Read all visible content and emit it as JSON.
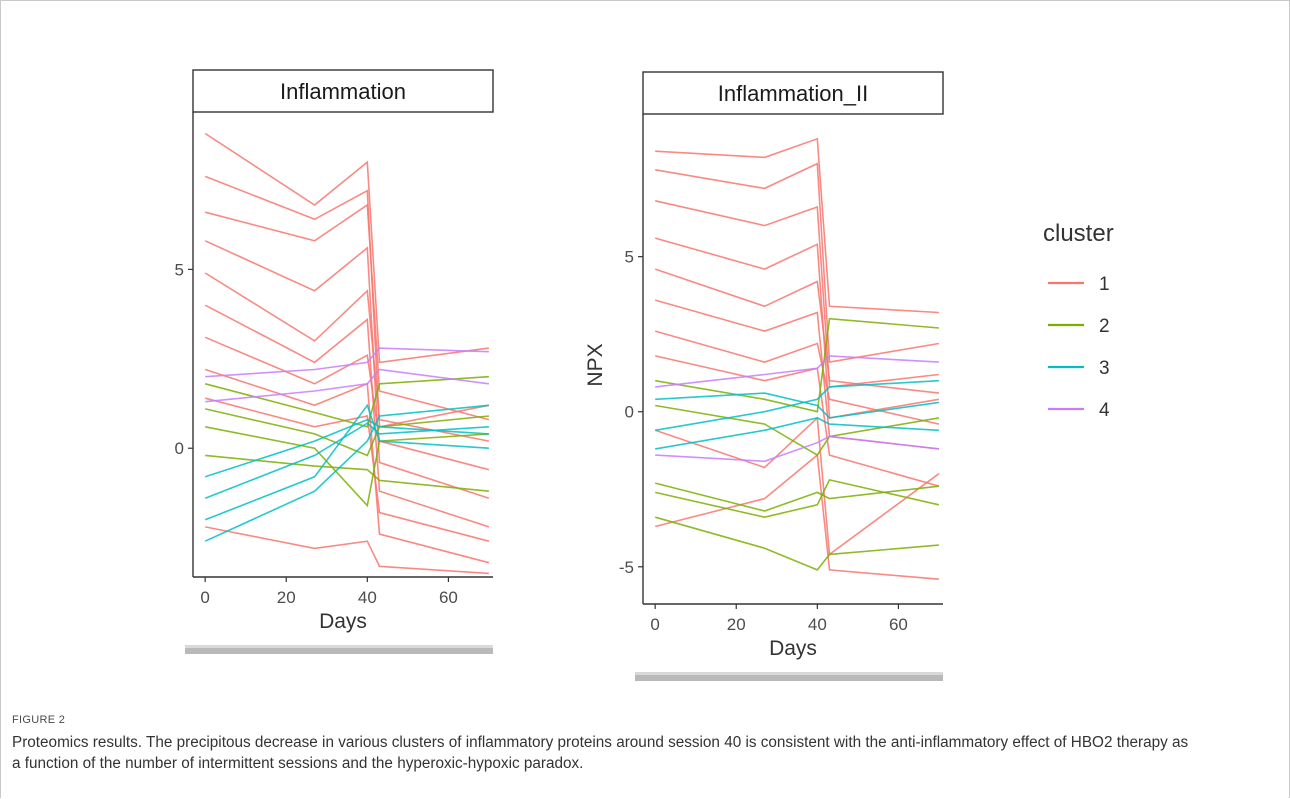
{
  "chart_data": [
    {
      "type": "line",
      "panel": "Inflammation",
      "strip_title": "Inflammation",
      "xlabel": "Days",
      "ylabel": "",
      "x_ticks": [
        0,
        20,
        40,
        60
      ],
      "y_ticks": [
        0,
        5
      ],
      "xlim": [
        -3,
        71
      ],
      "ylim": [
        -3.6,
        9.4
      ],
      "x_days": [
        0,
        27,
        40,
        43,
        70
      ],
      "grid": false,
      "series": [
        {
          "cluster": "1",
          "values": [
            8.8,
            6.8,
            8.0,
            2.4,
            2.8
          ]
        },
        {
          "cluster": "1",
          "values": [
            7.6,
            6.4,
            7.2,
            0.6,
            1.2
          ]
        },
        {
          "cluster": "1",
          "values": [
            6.6,
            5.8,
            6.8,
            1.6,
            0.8
          ]
        },
        {
          "cluster": "1",
          "values": [
            5.8,
            4.4,
            5.6,
            -0.4,
            -1.4
          ]
        },
        {
          "cluster": "1",
          "values": [
            4.9,
            3.0,
            4.4,
            0.8,
            0.2
          ]
        },
        {
          "cluster": "1",
          "values": [
            4.0,
            2.4,
            3.6,
            -1.2,
            -2.2
          ]
        },
        {
          "cluster": "1",
          "values": [
            3.1,
            1.8,
            2.6,
            0.2,
            -0.6
          ]
        },
        {
          "cluster": "1",
          "values": [
            2.2,
            1.2,
            1.8,
            -2.4,
            -3.2
          ]
        },
        {
          "cluster": "1",
          "values": [
            1.4,
            0.6,
            0.9,
            -1.8,
            -2.6
          ]
        },
        {
          "cluster": "1",
          "values": [
            -2.2,
            -2.8,
            -2.6,
            -3.3,
            -3.5
          ]
        },
        {
          "cluster": "2",
          "values": [
            1.8,
            1.0,
            0.6,
            1.8,
            2.0
          ]
        },
        {
          "cluster": "2",
          "values": [
            1.1,
            0.4,
            -0.2,
            0.6,
            0.9
          ]
        },
        {
          "cluster": "2",
          "values": [
            0.6,
            0.0,
            -1.6,
            0.2,
            0.4
          ]
        },
        {
          "cluster": "2",
          "values": [
            -0.2,
            -0.5,
            -0.6,
            -0.9,
            -1.2
          ]
        },
        {
          "cluster": "3",
          "values": [
            -1.4,
            -0.2,
            0.7,
            0.4,
            0.6
          ]
        },
        {
          "cluster": "3",
          "values": [
            -2.6,
            -1.2,
            0.2,
            0.9,
            1.2
          ]
        },
        {
          "cluster": "3",
          "values": [
            -2.0,
            -0.8,
            1.2,
            0.2,
            0.0
          ]
        },
        {
          "cluster": "3",
          "values": [
            -0.8,
            0.2,
            0.8,
            0.6,
            0.4
          ]
        },
        {
          "cluster": "4",
          "values": [
            2.0,
            2.2,
            2.4,
            2.8,
            2.7
          ]
        },
        {
          "cluster": "4",
          "values": [
            1.3,
            1.6,
            1.8,
            2.2,
            1.8
          ]
        }
      ]
    },
    {
      "type": "line",
      "panel": "Inflammation_II",
      "strip_title": "Inflammation_II",
      "xlabel": "Days",
      "ylabel": "NPX",
      "x_ticks": [
        0,
        20,
        40,
        60
      ],
      "y_ticks": [
        -5,
        0,
        5
      ],
      "xlim": [
        -3,
        71
      ],
      "ylim": [
        -6.2,
        9.6
      ],
      "x_days": [
        0,
        27,
        40,
        43,
        70
      ],
      "grid": false,
      "series": [
        {
          "cluster": "1",
          "values": [
            8.4,
            8.2,
            8.8,
            3.4,
            3.2
          ]
        },
        {
          "cluster": "1",
          "values": [
            7.8,
            7.2,
            8.0,
            1.6,
            2.2
          ]
        },
        {
          "cluster": "1",
          "values": [
            6.8,
            6.0,
            6.6,
            0.8,
            1.2
          ]
        },
        {
          "cluster": "1",
          "values": [
            5.6,
            4.6,
            5.4,
            -0.2,
            0.4
          ]
        },
        {
          "cluster": "1",
          "values": [
            4.6,
            3.4,
            4.2,
            1.0,
            0.6
          ]
        },
        {
          "cluster": "1",
          "values": [
            3.6,
            2.6,
            3.2,
            -0.8,
            -1.2
          ]
        },
        {
          "cluster": "1",
          "values": [
            2.6,
            1.6,
            2.2,
            0.4,
            -0.4
          ]
        },
        {
          "cluster": "1",
          "values": [
            1.8,
            1.0,
            1.4,
            -1.4,
            -2.4
          ]
        },
        {
          "cluster": "1",
          "values": [
            -0.6,
            -1.8,
            -0.2,
            -4.6,
            -2.0
          ]
        },
        {
          "cluster": "1",
          "values": [
            -3.7,
            -2.8,
            -1.4,
            -5.1,
            -5.4
          ]
        },
        {
          "cluster": "2",
          "values": [
            -2.3,
            -3.2,
            -2.6,
            -2.8,
            -2.4
          ]
        },
        {
          "cluster": "2",
          "values": [
            -3.4,
            -4.4,
            -5.1,
            -4.6,
            -4.3
          ]
        },
        {
          "cluster": "2",
          "values": [
            1.0,
            0.4,
            0.0,
            3.0,
            2.7
          ]
        },
        {
          "cluster": "2",
          "values": [
            0.2,
            -0.4,
            -1.4,
            -0.8,
            -0.2
          ]
        },
        {
          "cluster": "2",
          "values": [
            -2.6,
            -3.4,
            -3.0,
            -2.2,
            -3.0
          ]
        },
        {
          "cluster": "3",
          "values": [
            -0.6,
            0.0,
            0.4,
            0.8,
            1.0
          ]
        },
        {
          "cluster": "3",
          "values": [
            0.4,
            0.6,
            0.2,
            -0.2,
            0.3
          ]
        },
        {
          "cluster": "3",
          "values": [
            -1.2,
            -0.6,
            -0.2,
            -0.4,
            -0.6
          ]
        },
        {
          "cluster": "4",
          "values": [
            -1.4,
            -1.6,
            -1.0,
            -0.8,
            -1.2
          ]
        },
        {
          "cluster": "4",
          "values": [
            0.8,
            1.2,
            1.4,
            1.8,
            1.6
          ]
        }
      ]
    }
  ],
  "legend": {
    "title": "cluster",
    "placement": "right",
    "items": [
      {
        "label": "1",
        "color": "#f8766d"
      },
      {
        "label": "2",
        "color": "#7cae00"
      },
      {
        "label": "3",
        "color": "#00bfc4"
      },
      {
        "label": "4",
        "color": "#c77cff"
      }
    ]
  },
  "caption": {
    "label": "FIGURE 2",
    "text": "Proteomics results. The precipitous decrease in various clusters of inflammatory proteins around session 40 is consistent with the anti-inflammatory effect of HBO2 therapy as a function of the number of intermittent sessions and the hyperoxic-hypoxic paradox."
  }
}
